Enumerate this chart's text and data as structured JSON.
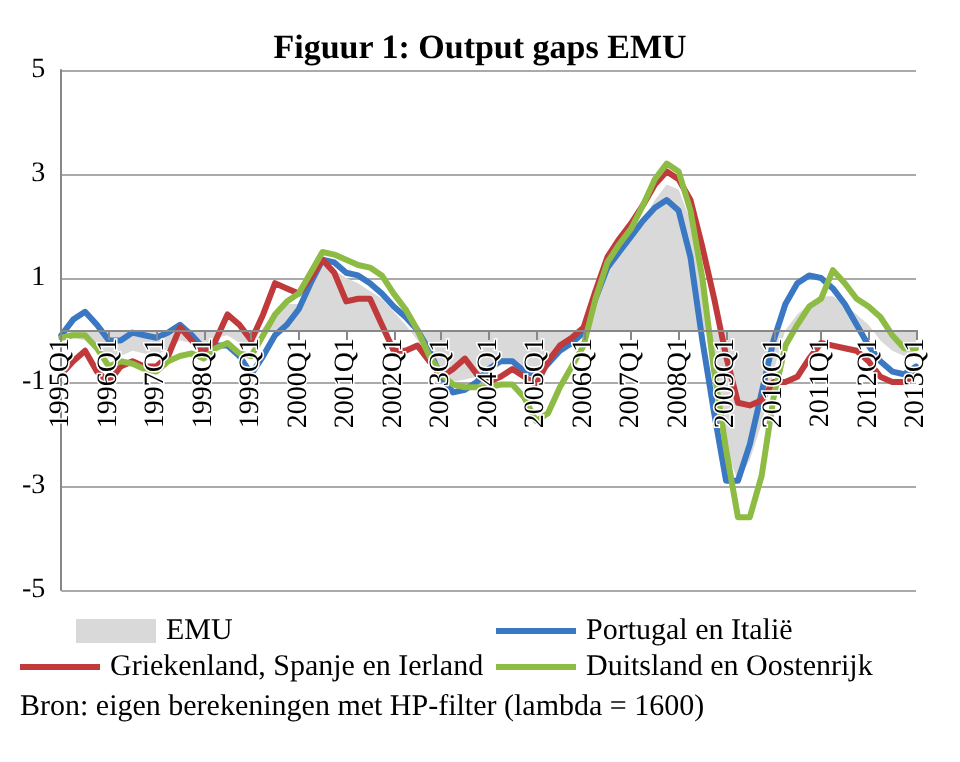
{
  "chart_data": {
    "type": "line",
    "title": "Figuur 1: Output gaps EMU",
    "annotations": [
      "Bron: eigen berekeningen met HP-filter (lambda = 1600)"
    ],
    "categories": [
      "1995Q1",
      null,
      null,
      null,
      "1996Q1",
      null,
      null,
      null,
      "1997Q1",
      null,
      null,
      null,
      "1998Q1",
      null,
      null,
      null,
      "1999Q1",
      null,
      null,
      null,
      "2000Q1",
      null,
      null,
      null,
      "2001Q1",
      null,
      null,
      null,
      "2002Q1",
      null,
      null,
      null,
      "2003Q1",
      null,
      null,
      null,
      "2004Q1",
      null,
      null,
      null,
      "2005Q1",
      null,
      null,
      null,
      "2006Q1",
      null,
      null,
      null,
      "2007Q1",
      null,
      null,
      null,
      "2008Q1",
      null,
      null,
      null,
      "2009Q1",
      null,
      null,
      null,
      "2010Q1",
      null,
      null,
      null,
      "2011Q1",
      null,
      null,
      null,
      "2012Q1",
      null,
      null,
      null,
      "2013Q1"
    ],
    "series": [
      {
        "name": "EMU",
        "type": "area",
        "color": "#d9d9d9",
        "values": [
          -0.1,
          -0.15,
          -0.2,
          -0.4,
          -0.55,
          -0.5,
          -0.4,
          -0.45,
          -0.5,
          -0.35,
          -0.2,
          -0.25,
          -0.3,
          -0.15,
          -0.1,
          -0.25,
          -0.3,
          0.05,
          0.35,
          0.5,
          0.5,
          0.9,
          1.3,
          1.15,
          1.0,
          0.9,
          0.75,
          0.6,
          0.35,
          0.1,
          -0.2,
          -0.5,
          -0.85,
          -1.0,
          -0.95,
          -0.9,
          -0.75,
          -0.65,
          -0.6,
          -0.8,
          -1.0,
          -0.75,
          -0.45,
          -0.2,
          -0.05,
          0.6,
          1.2,
          1.5,
          1.8,
          2.1,
          2.5,
          2.8,
          2.7,
          2.1,
          1.0,
          -0.5,
          -2.3,
          -2.9,
          -2.5,
          -1.8,
          -0.8,
          0.0,
          0.3,
          0.5,
          0.65,
          0.65,
          0.5,
          0.3,
          0.1,
          -0.2,
          -0.4,
          -0.5,
          -0.4
        ]
      },
      {
        "name": "Portugal en Italië",
        "color": "#3a78c3",
        "values": [
          -0.1,
          0.2,
          0.35,
          0.1,
          -0.2,
          -0.2,
          -0.05,
          -0.1,
          -0.15,
          -0.05,
          0.1,
          -0.1,
          -0.35,
          -0.3,
          -0.3,
          -0.5,
          -0.85,
          -0.5,
          -0.1,
          0.1,
          0.4,
          0.9,
          1.35,
          1.3,
          1.1,
          1.05,
          0.9,
          0.7,
          0.45,
          0.25,
          0.0,
          -0.4,
          -0.9,
          -1.2,
          -1.15,
          -1.0,
          -0.75,
          -0.6,
          -0.6,
          -0.8,
          -0.85,
          -0.65,
          -0.4,
          -0.25,
          -0.05,
          0.6,
          1.2,
          1.5,
          1.8,
          2.1,
          2.35,
          2.5,
          2.3,
          1.4,
          -0.2,
          -1.6,
          -2.9,
          -2.9,
          -2.2,
          -1.2,
          -0.2,
          0.5,
          0.9,
          1.05,
          1.0,
          0.8,
          0.5,
          0.1,
          -0.3,
          -0.6,
          -0.8,
          -0.85,
          -0.7
        ]
      },
      {
        "name": "Griekenland, Spanje en Ierland",
        "color": "#c0393b",
        "values": [
          -0.85,
          -0.6,
          -0.4,
          -0.8,
          -1.0,
          -0.7,
          -0.6,
          -0.7,
          -0.7,
          -0.5,
          0.05,
          -0.2,
          -0.45,
          -0.2,
          0.3,
          0.1,
          -0.2,
          0.3,
          0.9,
          0.8,
          0.7,
          1.0,
          1.35,
          1.1,
          0.55,
          0.6,
          0.6,
          0.1,
          -0.4,
          -0.4,
          -0.3,
          -0.6,
          -0.9,
          -0.75,
          -0.55,
          -0.85,
          -1.0,
          -0.9,
          -0.75,
          -0.9,
          -1.05,
          -0.6,
          -0.3,
          -0.15,
          0.05,
          0.75,
          1.4,
          1.75,
          2.05,
          2.4,
          2.8,
          3.05,
          2.9,
          2.5,
          1.6,
          0.6,
          -0.5,
          -1.4,
          -1.45,
          -1.35,
          -1.0,
          -1.0,
          -0.9,
          -0.55,
          -0.25,
          -0.3,
          -0.35,
          -0.4,
          -0.6,
          -0.9,
          -1.0,
          -1.0,
          -0.85
        ]
      },
      {
        "name": "Duitsland en Oostenrijk",
        "color": "#8dbb43",
        "values": [
          -0.15,
          -0.1,
          -0.1,
          -0.35,
          -0.7,
          -0.6,
          -0.65,
          -0.75,
          -0.8,
          -0.6,
          -0.5,
          -0.45,
          -0.55,
          -0.35,
          -0.25,
          -0.45,
          -0.5,
          -0.1,
          0.3,
          0.55,
          0.7,
          1.1,
          1.5,
          1.45,
          1.35,
          1.25,
          1.2,
          1.05,
          0.7,
          0.4,
          0.0,
          -0.5,
          -0.85,
          -1.05,
          -1.1,
          -1.1,
          -1.1,
          -1.05,
          -1.05,
          -1.3,
          -1.75,
          -1.6,
          -1.1,
          -0.7,
          -0.3,
          0.6,
          1.3,
          1.65,
          1.95,
          2.4,
          2.9,
          3.2,
          3.05,
          2.3,
          1.0,
          -0.8,
          -2.3,
          -3.6,
          -3.6,
          -2.8,
          -1.3,
          -0.3,
          0.1,
          0.45,
          0.6,
          1.15,
          0.9,
          0.6,
          0.45,
          0.25,
          -0.1,
          -0.35,
          -0.35
        ]
      }
    ],
    "ylim": [
      -5,
      5
    ],
    "yticks": [
      -5,
      -3,
      -1,
      1,
      3,
      5
    ],
    "grid": "y",
    "legend": "bottom",
    "marker": "none",
    "line_style": "solid"
  }
}
